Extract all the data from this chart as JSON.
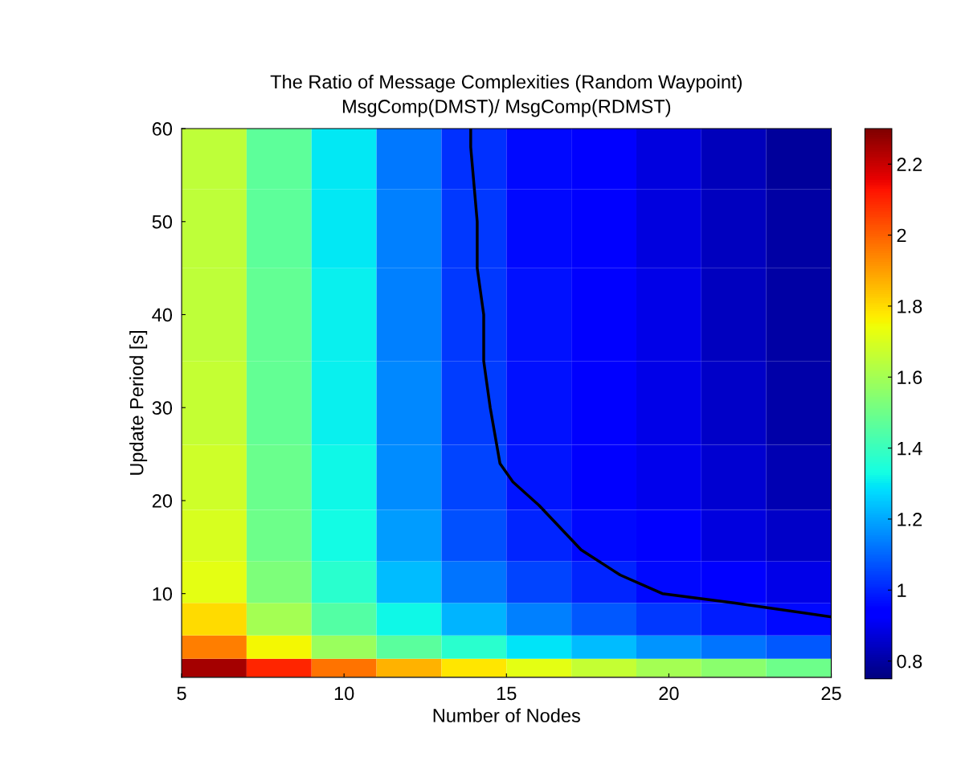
{
  "chart_data": {
    "type": "heatmap",
    "title": "The Ratio of Message Complexities (Random Waypoint)",
    "subtitle": "MsgComp(DMST)/ MsgComp(RDMST)",
    "xlabel": "Number of Nodes",
    "ylabel": "Update Period [s]",
    "x": [
      6,
      8,
      10,
      12,
      14,
      16,
      18,
      20,
      22,
      24
    ],
    "y": [
      2,
      4,
      7,
      11,
      16,
      22,
      30,
      40,
      50,
      57
    ],
    "cells": [
      [
        2.25,
        2.1,
        1.97,
        1.87,
        1.78,
        1.72,
        1.66,
        1.6,
        1.55,
        1.5
      ],
      [
        1.95,
        1.75,
        1.58,
        1.46,
        1.37,
        1.29,
        1.23,
        1.17,
        1.12,
        1.08
      ],
      [
        1.8,
        1.6,
        1.45,
        1.32,
        1.22,
        1.14,
        1.08,
        1.03,
        0.99,
        0.96
      ],
      [
        1.72,
        1.53,
        1.37,
        1.23,
        1.12,
        1.05,
        1.0,
        0.96,
        0.92,
        0.89
      ],
      [
        1.7,
        1.5,
        1.33,
        1.18,
        1.07,
        1.0,
        0.96,
        0.92,
        0.88,
        0.85
      ],
      [
        1.68,
        1.49,
        1.32,
        1.16,
        1.05,
        0.98,
        0.94,
        0.9,
        0.86,
        0.82
      ],
      [
        1.66,
        1.48,
        1.31,
        1.15,
        1.04,
        0.97,
        0.93,
        0.89,
        0.85,
        0.81
      ],
      [
        1.65,
        1.48,
        1.31,
        1.14,
        1.03,
        0.97,
        0.93,
        0.89,
        0.84,
        0.8
      ],
      [
        1.65,
        1.47,
        1.3,
        1.14,
        1.03,
        0.96,
        0.92,
        0.88,
        0.84,
        0.8
      ],
      [
        1.65,
        1.47,
        1.3,
        1.13,
        1.02,
        0.96,
        0.92,
        0.88,
        0.83,
        0.79
      ]
    ],
    "series": [
      {
        "type": "line",
        "color": "#000000",
        "x": [
          13.9,
          13.9,
          14.1,
          14.1,
          14.3,
          14.3,
          14.5,
          14.8,
          15.2,
          16,
          17.3,
          18.5,
          19.8,
          22,
          25
        ],
        "values": [
          60,
          58,
          50,
          45,
          40,
          35,
          30,
          24,
          22,
          19.5,
          14.7,
          12,
          10,
          9,
          7.5
        ]
      }
    ],
    "xlim": [
      5,
      25
    ],
    "xticks": [
      5,
      10,
      15,
      20,
      25
    ],
    "ylim": [
      1,
      60
    ],
    "yticks": [
      10,
      20,
      30,
      40,
      50,
      60
    ],
    "clim": [
      0.75,
      2.3
    ],
    "cticks": [
      0.8,
      1,
      1.2,
      1.4,
      1.6,
      1.8,
      2,
      2.2
    ]
  }
}
